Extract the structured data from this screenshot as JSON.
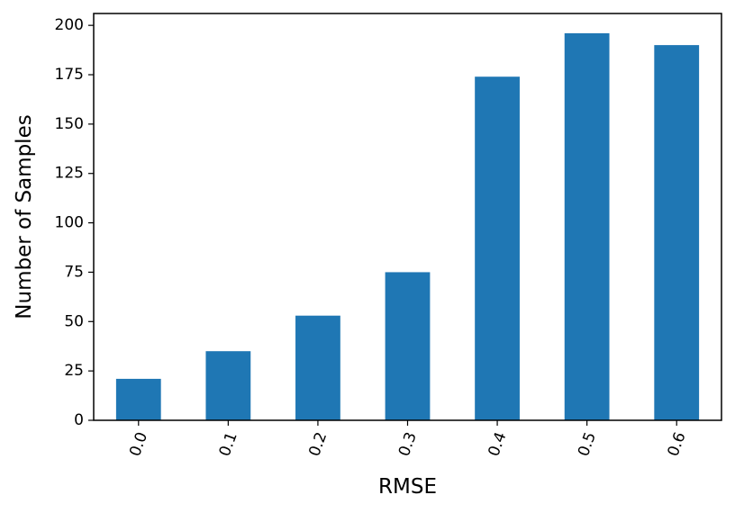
{
  "chart_data": {
    "type": "bar",
    "title": "",
    "xlabel": "RMSE",
    "ylabel": "Number of Samples",
    "categories": [
      "0.0",
      "0.1",
      "0.2",
      "0.3",
      "0.4",
      "0.5",
      "0.6"
    ],
    "values": [
      21,
      35,
      53,
      75,
      174,
      196,
      190
    ],
    "ylim": [
      0,
      206
    ],
    "yticks": [
      0,
      25,
      50,
      75,
      100,
      125,
      150,
      175,
      200
    ],
    "xtick_rotation_deg": 70,
    "grid": false,
    "legend": "none",
    "bar_color": "#1f77b4"
  }
}
